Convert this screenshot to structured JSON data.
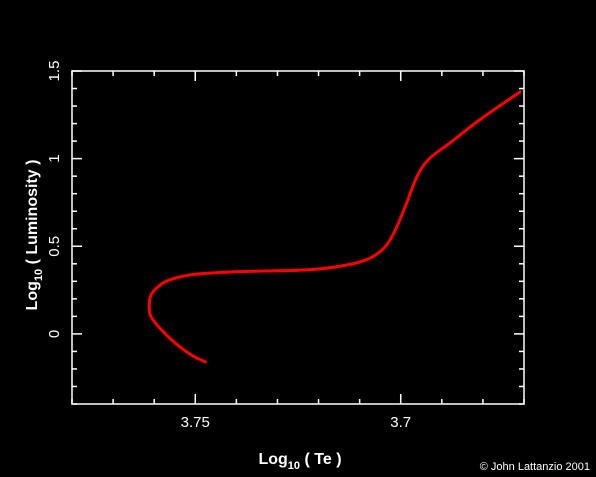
{
  "chart_data": {
    "type": "line",
    "xaxis": {
      "reversed": true,
      "xlim": [
        3.78,
        3.67
      ],
      "major_ticks": [
        3.75,
        3.7
      ],
      "tick_labels": [
        "3.75",
        "3.7"
      ],
      "label_main": "Log",
      "label_sub": "10",
      "label_rest": " ( Te )"
    },
    "yaxis": {
      "ylim": [
        -0.4,
        1.5
      ],
      "major_ticks": [
        0,
        0.5,
        1,
        1.5
      ],
      "tick_labels": [
        "0",
        "0.5",
        "1",
        "1.5"
      ],
      "label_main": "Log",
      "label_sub": "10",
      "label_rest": " ( Luminosity )"
    },
    "series": [
      {
        "color": "#ff0000",
        "x": [
          3.7475,
          3.751,
          3.755,
          3.7585,
          3.7608,
          3.7612,
          3.7608,
          3.759,
          3.756,
          3.75,
          3.74,
          3.73,
          3.72,
          3.71,
          3.705,
          3.702,
          3.699,
          3.696,
          3.693,
          3.688,
          3.682,
          3.676,
          3.671
        ],
        "y": [
          -0.16,
          -0.12,
          -0.05,
          0.03,
          0.1,
          0.16,
          0.22,
          0.27,
          0.31,
          0.34,
          0.355,
          0.36,
          0.37,
          0.41,
          0.47,
          0.56,
          0.72,
          0.9,
          1.0,
          1.09,
          1.2,
          1.3,
          1.38
        ]
      }
    ]
  },
  "credit": "© John Lattanzio 2001"
}
